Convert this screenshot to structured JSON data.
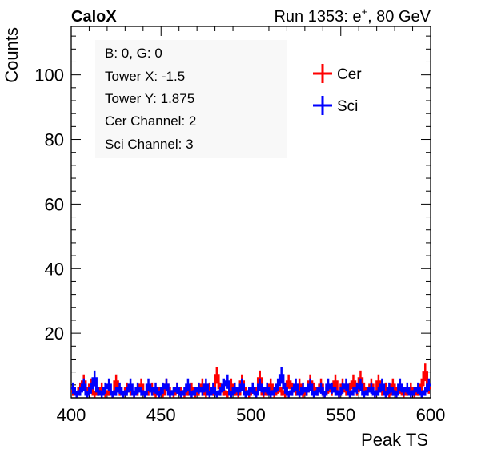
{
  "header": {
    "experiment": "CaloX",
    "run_prefix": "Run 1353: e",
    "run_superscript": "+",
    "run_suffix": ", 80 GeV"
  },
  "info_box": {
    "lines": [
      "B: 0, G: 0",
      "Tower X: -1.5",
      "Tower Y: 1.875",
      "Cer Channel: 2",
      "Sci Channel: 3"
    ]
  },
  "chart_data": {
    "type": "line",
    "xlabel": "Peak TS",
    "ylabel": "Counts",
    "xlim": [
      400,
      600
    ],
    "ylim": [
      0,
      115
    ],
    "xticks": [
      400,
      450,
      500,
      550,
      600
    ],
    "yticks": [
      20,
      40,
      60,
      80,
      100
    ],
    "legend_position": "top-right",
    "grid": false,
    "series": [
      {
        "name": "Cer",
        "color": "#ff0000",
        "style": "histogram step with error bars",
        "x": [
          400,
          402,
          404,
          406,
          408,
          410,
          412,
          414,
          416,
          418,
          420,
          422,
          424,
          426,
          428,
          430,
          432,
          434,
          436,
          438,
          440,
          442,
          444,
          446,
          448,
          450,
          452,
          454,
          456,
          458,
          460,
          462,
          464,
          466,
          468,
          470,
          472,
          474,
          476,
          478,
          480,
          482,
          484,
          486,
          488,
          490,
          492,
          494,
          496,
          498,
          500,
          502,
          504,
          506,
          508,
          510,
          512,
          514,
          516,
          518,
          520,
          522,
          524,
          526,
          528,
          530,
          532,
          534,
          536,
          538,
          540,
          542,
          544,
          546,
          548,
          550,
          552,
          554,
          556,
          558,
          560,
          562,
          564,
          566,
          568,
          570,
          572,
          574,
          576,
          578,
          580,
          582,
          584,
          586,
          588,
          590,
          592,
          594,
          596,
          598
        ],
        "values": [
          2,
          1,
          3,
          5,
          2,
          4,
          1,
          2,
          3,
          1,
          2,
          1,
          5,
          2,
          1,
          3,
          2,
          1,
          2,
          4,
          1,
          2,
          3,
          1,
          2,
          1,
          4,
          2,
          1,
          3,
          2,
          1,
          2,
          3,
          1,
          2,
          4,
          1,
          3,
          2,
          7,
          3,
          2,
          1,
          4,
          2,
          1,
          5,
          2,
          1,
          3,
          2,
          6,
          1,
          2,
          4,
          1,
          3,
          2,
          1,
          5,
          3,
          2,
          4,
          1,
          2,
          5,
          3,
          2,
          4,
          1,
          3,
          2,
          5,
          1,
          4,
          2,
          3,
          5,
          2,
          6,
          3,
          2,
          4,
          1,
          5,
          2,
          3,
          1,
          4,
          2,
          3,
          1,
          2,
          3,
          1,
          2,
          4,
          8,
          3
        ]
      },
      {
        "name": "Sci",
        "color": "#0000ff",
        "style": "histogram step with error bars",
        "x": [
          400,
          402,
          404,
          406,
          408,
          410,
          412,
          414,
          416,
          418,
          420,
          422,
          424,
          426,
          428,
          430,
          432,
          434,
          436,
          438,
          440,
          442,
          444,
          446,
          448,
          450,
          452,
          454,
          456,
          458,
          460,
          462,
          464,
          466,
          468,
          470,
          472,
          474,
          476,
          478,
          480,
          482,
          484,
          486,
          488,
          490,
          492,
          494,
          496,
          498,
          500,
          502,
          504,
          506,
          508,
          510,
          512,
          514,
          516,
          518,
          520,
          522,
          524,
          526,
          528,
          530,
          532,
          534,
          536,
          538,
          540,
          542,
          544,
          546,
          548,
          550,
          552,
          554,
          556,
          558,
          560,
          562,
          564,
          566,
          568,
          570,
          572,
          574,
          576,
          578,
          580,
          582,
          584,
          586,
          588,
          590,
          592,
          594,
          596,
          598
        ],
        "values": [
          3,
          1,
          2,
          4,
          1,
          3,
          6,
          2,
          1,
          3,
          4,
          1,
          2,
          3,
          1,
          2,
          4,
          1,
          3,
          2,
          1,
          4,
          2,
          3,
          1,
          3,
          4,
          1,
          2,
          3,
          1,
          2,
          4,
          1,
          2,
          3,
          2,
          4,
          1,
          3,
          1,
          2,
          4,
          5,
          1,
          3,
          2,
          4,
          1,
          2,
          3,
          1,
          4,
          2,
          3,
          1,
          2,
          4,
          7,
          3,
          1,
          2,
          4,
          1,
          3,
          2,
          4,
          1,
          2,
          3,
          1,
          4,
          3,
          2,
          1,
          3,
          4,
          1,
          2,
          3,
          4,
          1,
          2,
          3,
          1,
          2,
          4,
          1,
          3,
          2,
          1,
          4,
          2,
          3,
          1,
          2,
          3,
          1,
          2,
          4
        ]
      }
    ]
  }
}
